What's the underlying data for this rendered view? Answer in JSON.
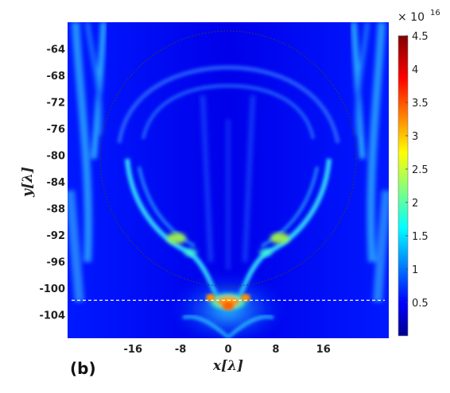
{
  "chart_data": {
    "type": "heatmap",
    "title": "",
    "panel_label": "(b)",
    "xlabel": "x[λ]",
    "ylabel": "y[λ]",
    "xlim": [
      -27,
      27
    ],
    "ylim": [
      -107.5,
      -60
    ],
    "x_ticks": [
      -16,
      -8,
      0,
      8,
      16
    ],
    "x_tick_labels": [
      "-16",
      "-8",
      "0",
      "8",
      "16"
    ],
    "y_ticks": [
      -64,
      -68,
      -72,
      -76,
      -80,
      -84,
      -88,
      -92,
      -96,
      -100,
      -104
    ],
    "y_tick_labels": [
      "-64",
      "-68",
      "-72",
      "-76",
      "-80",
      "-84",
      "-88",
      "-92",
      "-96",
      "-100",
      "-104"
    ],
    "colorbar": {
      "range": [
        0,
        4.5
      ],
      "ticks": [
        0.5,
        1,
        1.5,
        2,
        2.5,
        3,
        3.5,
        4,
        4.5
      ],
      "tick_labels": [
        "0.5",
        "1",
        "1.5",
        "2",
        "2.5",
        "3",
        "3.5",
        "4",
        "4.5"
      ],
      "multiplier": "× 10",
      "exponent": "16",
      "colormap": "jet"
    },
    "annotations": {
      "circle": {
        "center_x": 0,
        "center_y": -80.5,
        "radius": 21.5,
        "style": "dotted",
        "color": "#333333"
      },
      "reference_line_y": -101.8
    }
  }
}
